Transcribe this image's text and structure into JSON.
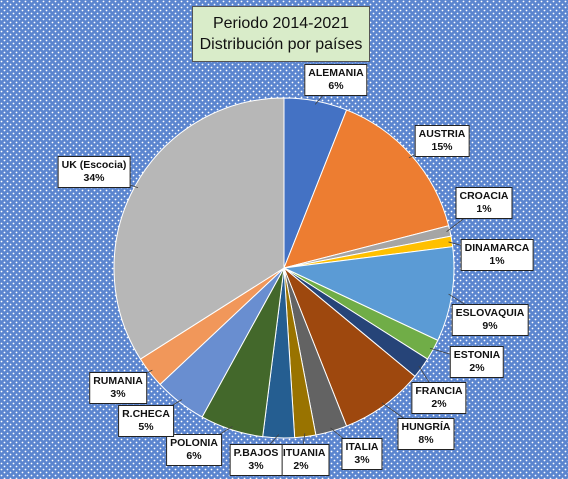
{
  "title_line1": "Periodo 2014-2021",
  "title_line2": "Distribución por países",
  "colors": {
    "background": "#5b85cf",
    "background_dots": "#ffffff",
    "title_fill": "#d9ecc9"
  },
  "chart_data": {
    "type": "pie",
    "title": "Periodo 2014-2021 Distribución por países",
    "start_angle_deg": 0,
    "direction": "clockwise",
    "slices": [
      {
        "name": "ALEMANIA",
        "value": 6,
        "label": "6%",
        "color": "#4472c4"
      },
      {
        "name": "AUSTRIA",
        "value": 15,
        "label": "15%",
        "color": "#ed7d31"
      },
      {
        "name": "CROACIA",
        "value": 1,
        "label": "1%",
        "color": "#a5a5a5"
      },
      {
        "name": "DINAMARCA",
        "value": 1,
        "label": "1%",
        "color": "#ffc000"
      },
      {
        "name": "ESLOVAQUIA",
        "value": 9,
        "label": "9%",
        "color": "#5b9bd5"
      },
      {
        "name": "ESTONIA",
        "value": 2,
        "label": "2%",
        "color": "#70ad47"
      },
      {
        "name": "FRANCIA",
        "value": 2,
        "label": "2%",
        "color": "#264478"
      },
      {
        "name": "HUNGRÍA",
        "value": 8,
        "label": "8%",
        "color": "#9e480e"
      },
      {
        "name": "ITALIA",
        "value": 3,
        "label": "3%",
        "color": "#636363"
      },
      {
        "name": "LITUANIA",
        "value": 2,
        "label": "2%",
        "color": "#997300"
      },
      {
        "name": "P.BAJOS",
        "value": 3,
        "label": "3%",
        "color": "#255e91"
      },
      {
        "name": "POLONIA",
        "value": 6,
        "label": "6%",
        "color": "#43682b"
      },
      {
        "name": "R.CHECA",
        "value": 5,
        "label": "5%",
        "color": "#698ed0"
      },
      {
        "name": "RUMANIA",
        "value": 3,
        "label": "3%",
        "color": "#f1975a"
      },
      {
        "name": "UK (Escocia)",
        "value": 34,
        "label": "34%",
        "color": "#b7b7b7"
      }
    ]
  }
}
